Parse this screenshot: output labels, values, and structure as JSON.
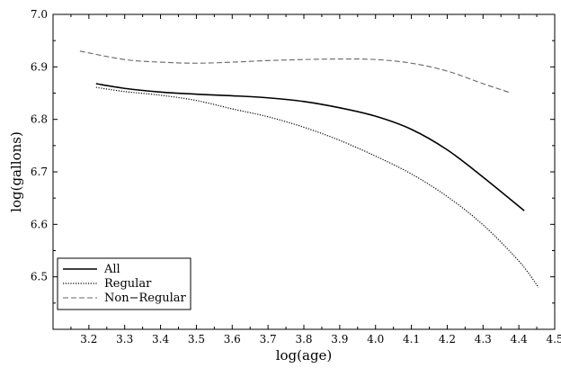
{
  "chart_data": {
    "type": "line",
    "title": "",
    "xlabel": "log(age)",
    "ylabel": "log(gallons)",
    "xlim": [
      3.1,
      4.5
    ],
    "ylim": [
      6.4,
      7.0
    ],
    "xticks": [
      "3.2",
      "3.3",
      "3.4",
      "3.5",
      "3.6",
      "3.7",
      "3.8",
      "3.9",
      "4.0",
      "4.1",
      "4.2",
      "4.3",
      "4.4",
      "4.5"
    ],
    "yticks": [
      "6.5",
      "6.6",
      "6.7",
      "6.8",
      "6.9",
      "7.0"
    ],
    "grid": false,
    "legend_position": "bottom-left",
    "series": [
      {
        "name": "All",
        "style": "solid",
        "color": "#000000",
        "x": [
          3.22,
          3.3,
          3.4,
          3.5,
          3.6,
          3.7,
          3.8,
          3.9,
          4.0,
          4.1,
          4.2,
          4.3,
          4.415
        ],
        "y": [
          6.868,
          6.859,
          6.852,
          6.848,
          6.845,
          6.841,
          6.834,
          6.822,
          6.806,
          6.781,
          6.742,
          6.69,
          6.626
        ]
      },
      {
        "name": "Regular",
        "style": "dotted",
        "color": "#000000",
        "x": [
          3.22,
          3.3,
          3.4,
          3.5,
          3.6,
          3.7,
          3.8,
          3.9,
          4.0,
          4.1,
          4.2,
          4.3,
          4.4,
          4.455
        ],
        "y": [
          6.861,
          6.853,
          6.846,
          6.836,
          6.82,
          6.805,
          6.785,
          6.76,
          6.73,
          6.696,
          6.653,
          6.599,
          6.53,
          6.48
        ]
      },
      {
        "name": "Non−Regular",
        "style": "dashed",
        "color": "#666666",
        "x": [
          3.175,
          3.3,
          3.4,
          3.5,
          3.6,
          3.7,
          3.8,
          3.9,
          4.0,
          4.1,
          4.2,
          4.3,
          4.375
        ],
        "y": [
          6.93,
          6.914,
          6.909,
          6.907,
          6.909,
          6.912,
          6.914,
          6.915,
          6.914,
          6.907,
          6.892,
          6.868,
          6.851
        ]
      }
    ]
  }
}
